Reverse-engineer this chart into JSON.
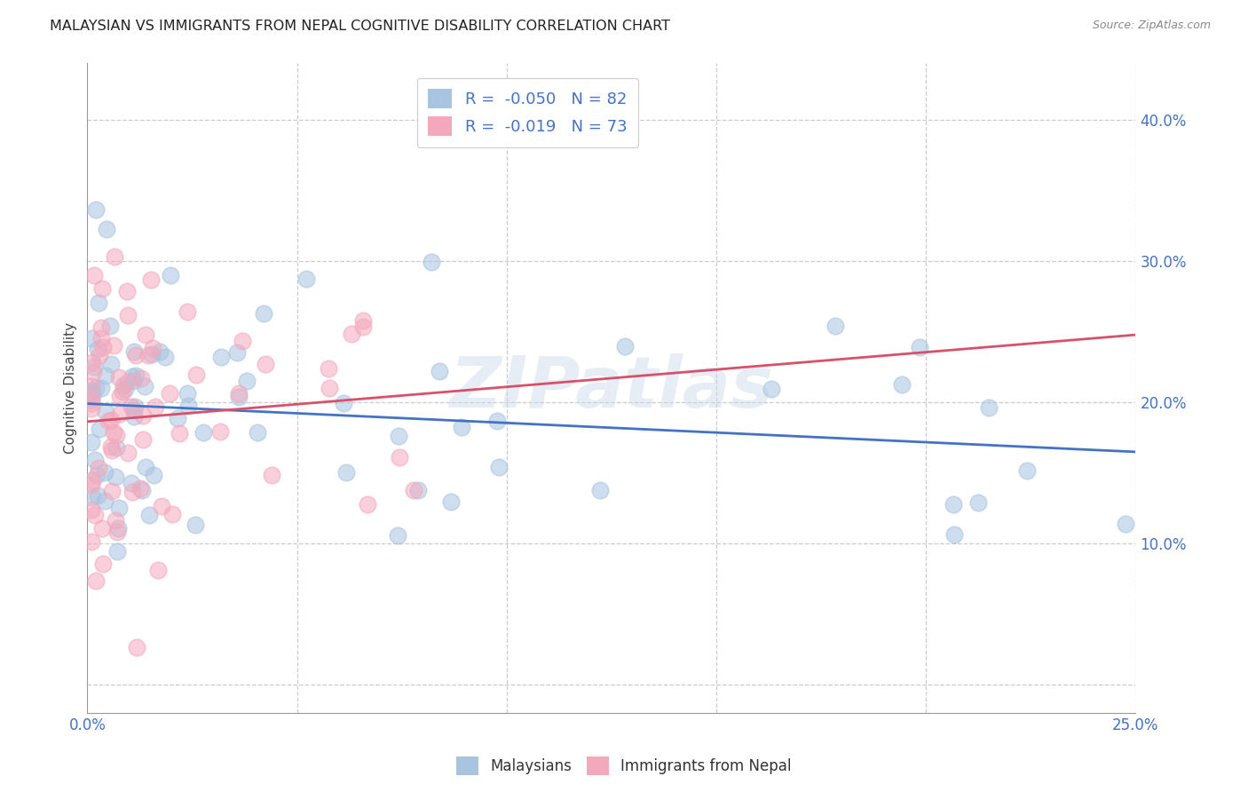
{
  "title": "MALAYSIAN VS IMMIGRANTS FROM NEPAL COGNITIVE DISABILITY CORRELATION CHART",
  "source": "Source: ZipAtlas.com",
  "ylabel": "Cognitive Disability",
  "yticks": [
    0.0,
    0.1,
    0.2,
    0.3,
    0.4
  ],
  "xlim": [
    0.0,
    0.25
  ],
  "ylim": [
    -0.02,
    0.44
  ],
  "legend_r1": "-0.050",
  "legend_n1": "82",
  "legend_r2": "-0.019",
  "legend_n2": "73",
  "color_blue": "#a8c4e0",
  "color_pink": "#f4a8bc",
  "line_blue": "#4472c4",
  "line_pink": "#d9506a",
  "text_blue": "#4472c4",
  "watermark": "ZIPatlas",
  "grid_color": "#cccccc",
  "bg_color": "#ffffff"
}
